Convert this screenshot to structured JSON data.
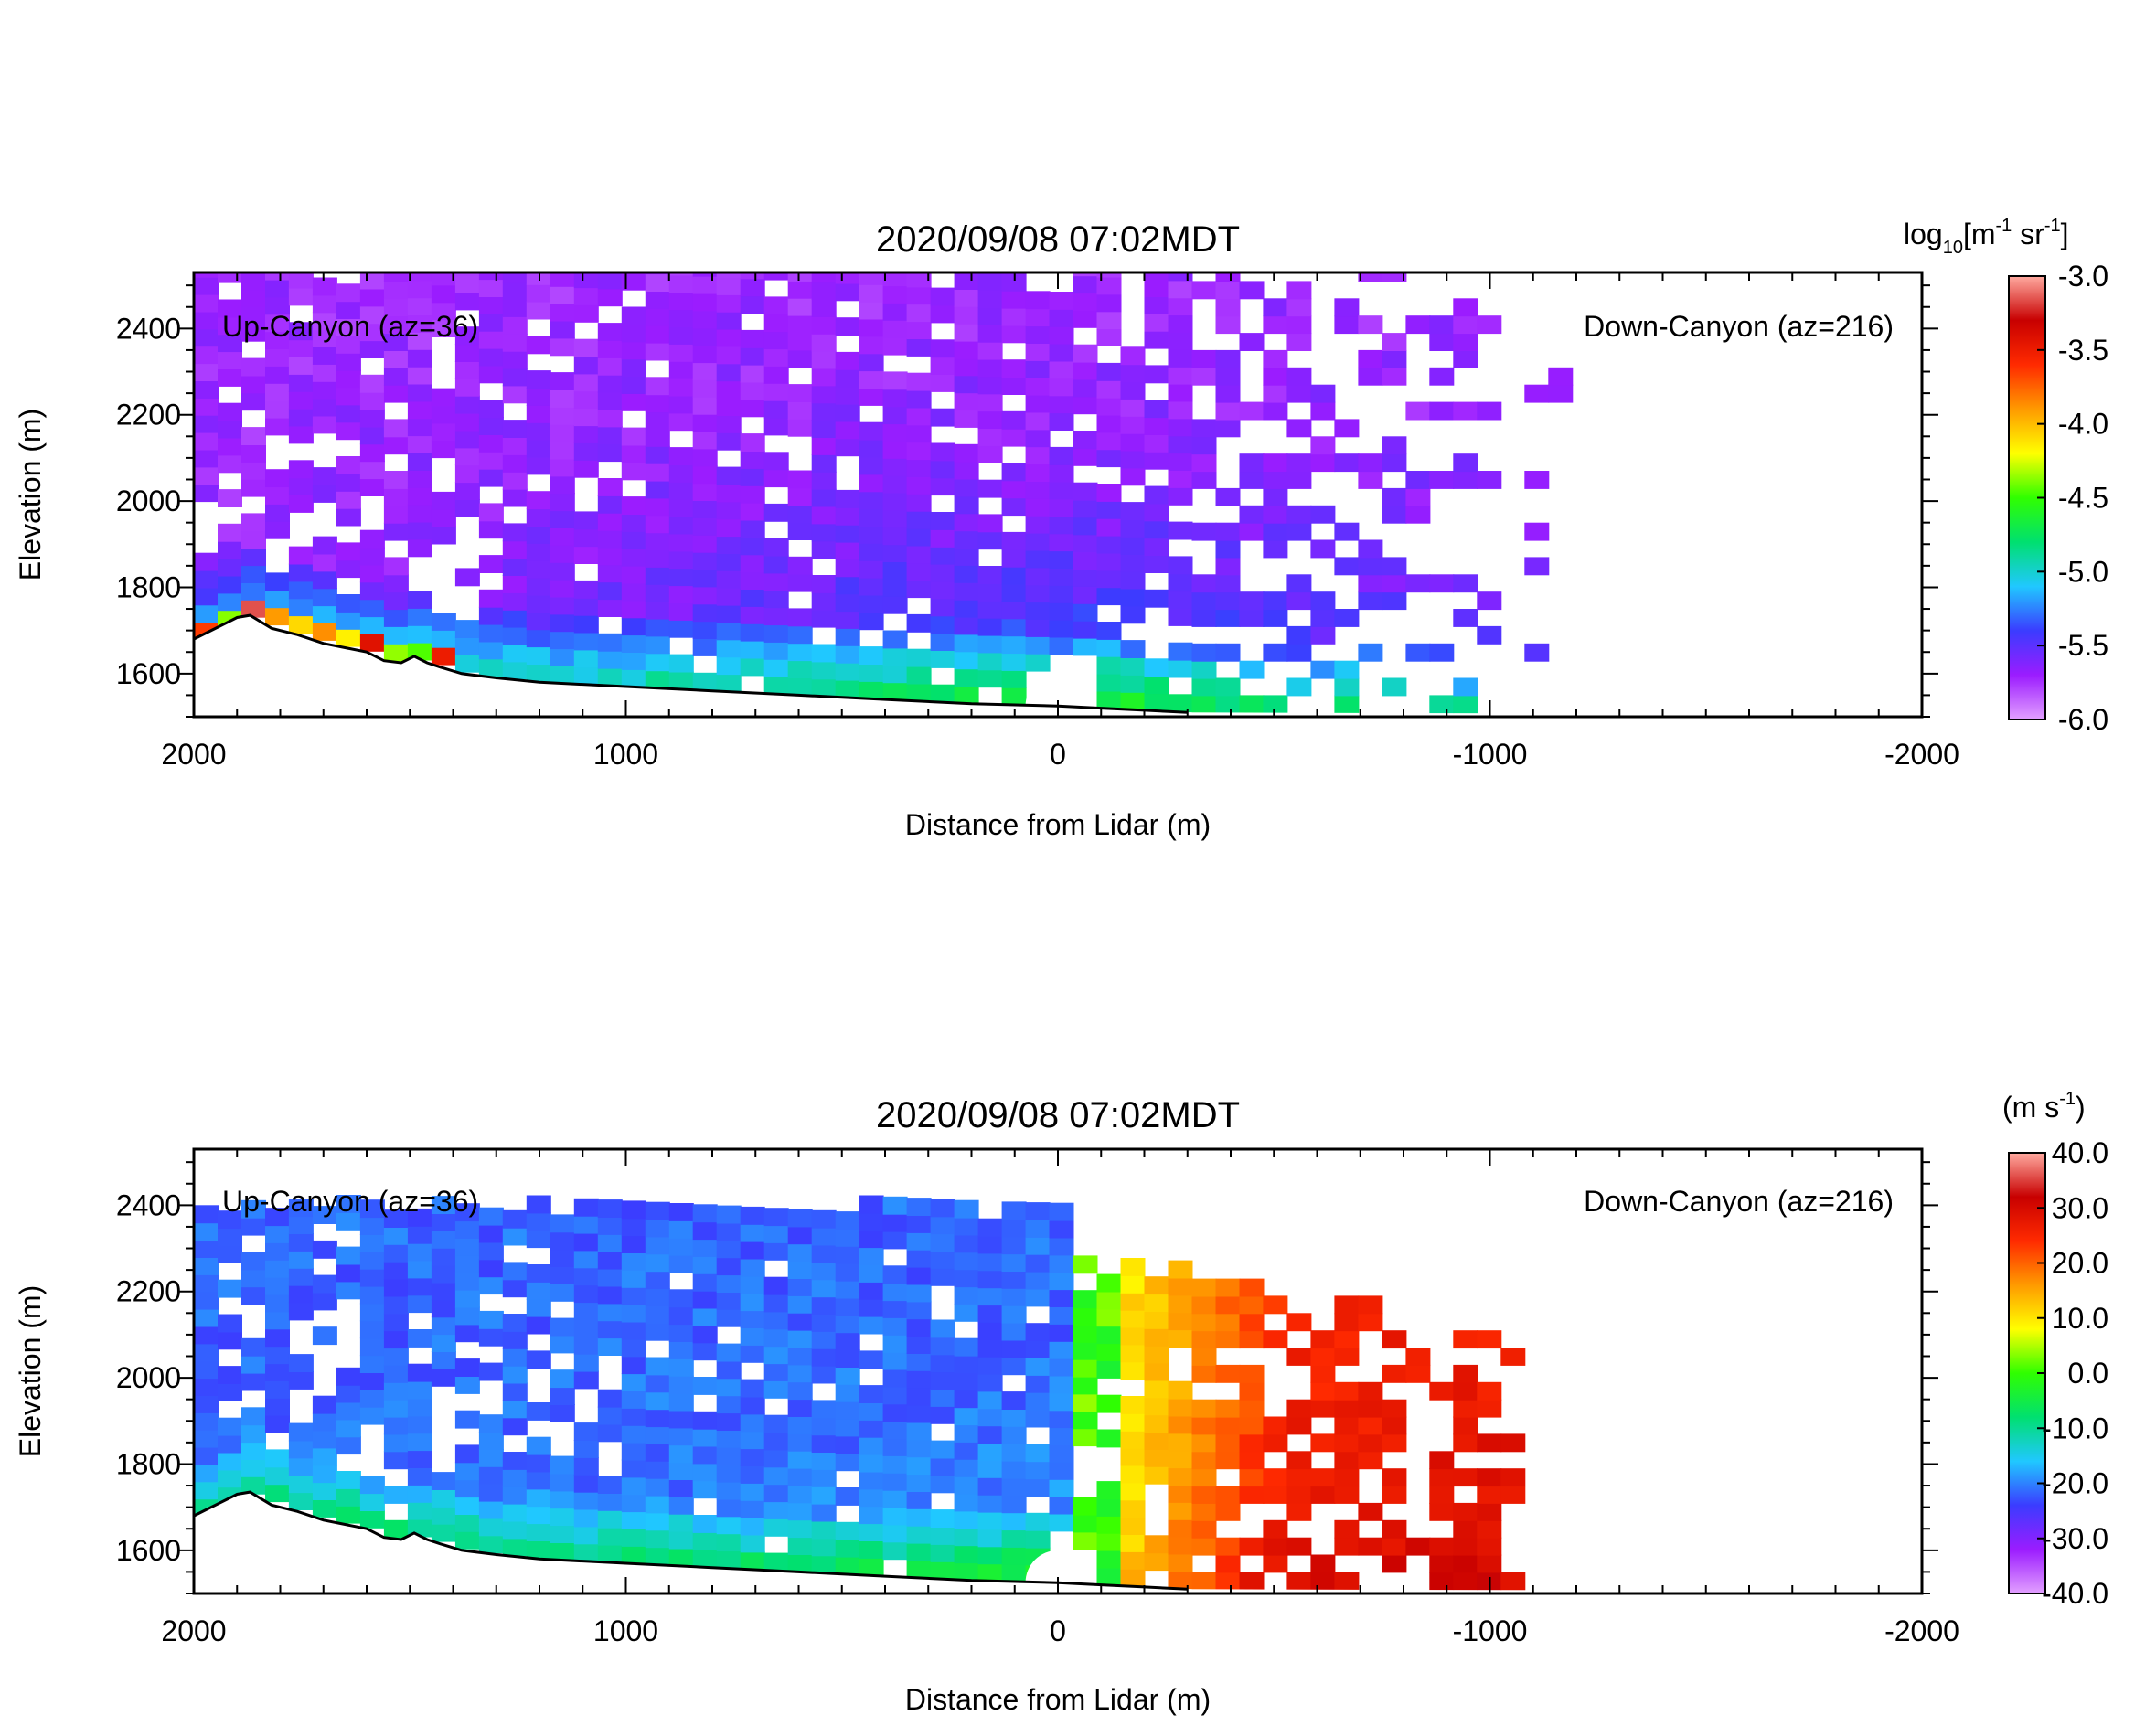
{
  "colormaps": {
    "backscatter": [
      "#e2a0ff",
      "#9b1cff",
      "#3b3cff",
      "#20c8ff",
      "#00e070",
      "#30ff00",
      "#ffff00",
      "#ff9a00",
      "#ff2a00",
      "#c80000",
      "#ffaaa0"
    ],
    "velocity": [
      "#e2a0ff",
      "#9b1cff",
      "#3b3cff",
      "#20c8ff",
      "#00e070",
      "#30ff00",
      "#ffff00",
      "#ff9a00",
      "#ff2a00",
      "#c80000",
      "#ffaaa0"
    ]
  },
  "terrain": {
    "x": [
      2000,
      1900,
      1870,
      1820,
      1760,
      1700,
      1650,
      1600,
      1560,
      1520,
      1490,
      1460,
      1430,
      1380,
      1300,
      1200,
      1000,
      800,
      600,
      400,
      200,
      0,
      -100,
      -200,
      -300
    ],
    "elev": [
      1680,
      1730,
      1735,
      1705,
      1690,
      1670,
      1660,
      1650,
      1630,
      1625,
      1640,
      1625,
      1615,
      1600,
      1590,
      1580,
      1570,
      1560,
      1550,
      1540,
      1530,
      1525,
      1520,
      1515,
      1510
    ]
  },
  "chart_data": [
    {
      "type": "heatmap",
      "title": "2020/09/08 07:02MDT",
      "xlabel": "Distance from Lidar (m)",
      "ylabel": "Elevation (m)",
      "xlim": [
        2000,
        -2000
      ],
      "ylim": [
        1500,
        2530
      ],
      "x_ticks": [
        "2000",
        "1000",
        "0",
        "-1000",
        "-2000"
      ],
      "y_ticks": [
        "1600",
        "1800",
        "2000",
        "2200",
        "2400"
      ],
      "annotations": {
        "left": "Up-Canyon (az=36)",
        "right": "Down-Canyon (az=216)"
      },
      "colorbar": {
        "label": "log10[m-1 sr-1]",
        "range": [
          -6.0,
          -3.0
        ],
        "ticks": [
          "-3.0",
          "-3.5",
          "-4.0",
          "-4.5",
          "-5.0",
          "-5.5",
          "-6.0"
        ]
      },
      "field": "backscatter"
    },
    {
      "type": "heatmap",
      "title": "2020/09/08 07:02MDT",
      "xlabel": "Distance from Lidar (m)",
      "ylabel": "Elevation (m)",
      "xlim": [
        2000,
        -2000
      ],
      "ylim": [
        1500,
        2530
      ],
      "x_ticks": [
        "2000",
        "1000",
        "0",
        "-1000",
        "-2000"
      ],
      "y_ticks": [
        "1600",
        "1800",
        "2000",
        "2200",
        "2400"
      ],
      "annotations": {
        "left": "Up-Canyon (az=36)",
        "right": "Down-Canyon (az=216)"
      },
      "colorbar": {
        "label": "(m s-1)",
        "range": [
          -40.0,
          40.0
        ],
        "ticks": [
          "40.0",
          "30.0",
          "20.0",
          "10.0",
          "0.0",
          "-10.0",
          "-20.0",
          "-30.0",
          "-40.0"
        ]
      },
      "field": "velocity"
    }
  ]
}
